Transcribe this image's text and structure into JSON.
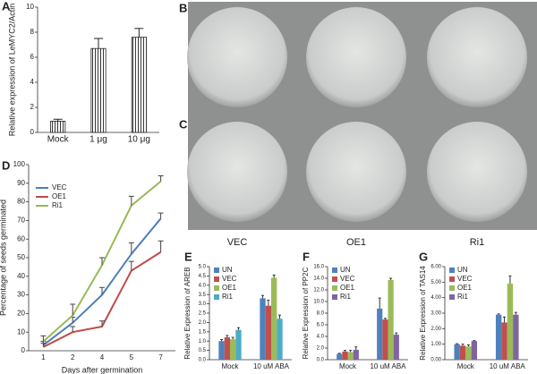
{
  "photo_panels": {
    "labels": [
      "B",
      "C"
    ],
    "column_labels": [
      "VEC",
      "OE1",
      "Ri1"
    ]
  },
  "chart_data": [
    {
      "panel": "A",
      "type": "bar",
      "ylabel": "Relative expression of LeMYC2/Actin",
      "categories": [
        "Mock",
        "1 μg",
        "10 μg"
      ],
      "values": [
        0.9,
        6.7,
        7.6
      ],
      "errors": [
        0.15,
        0.8,
        0.7
      ],
      "color": "#ffffff",
      "ylim": [
        0,
        10
      ],
      "yticks": [
        0,
        2,
        4,
        6,
        8,
        10
      ]
    },
    {
      "panel": "D",
      "type": "line",
      "ylabel": "Percentage of seeds germinated",
      "xlabel": "Days after germination",
      "categories": [
        "1",
        "2",
        "4",
        "5",
        "7"
      ],
      "ylim": [
        0,
        100
      ],
      "yticks": [
        0,
        10,
        20,
        30,
        40,
        50,
        60,
        70,
        80,
        90,
        100
      ],
      "series": [
        {
          "name": "VEC",
          "color": "#4a7ebb",
          "values": [
            3,
            15,
            30,
            52,
            71
          ],
          "errors": [
            2,
            3,
            4,
            6,
            3
          ]
        },
        {
          "name": "OE1",
          "color": "#be4b48",
          "values": [
            2,
            10,
            13,
            43,
            53
          ],
          "errors": [
            2,
            3,
            3,
            5,
            6
          ]
        },
        {
          "name": "Ri1",
          "color": "#98b954",
          "values": [
            5,
            19,
            46,
            78,
            91
          ],
          "errors": [
            3,
            6,
            4,
            5,
            3
          ]
        }
      ]
    },
    {
      "panel": "E",
      "type": "grouped-bar",
      "ylabel": "Relative Expression of AREB",
      "categories": [
        "Mock",
        "10 uM ABA"
      ],
      "ylim": [
        0,
        5
      ],
      "yticks": [
        {
          "value": 0,
          "label": "0.0"
        },
        0.5,
        {
          "value": 1,
          "label": "1.0"
        },
        1.5,
        {
          "value": 2,
          "label": "2.0"
        },
        2.5,
        {
          "value": 3,
          "label": "3.0"
        },
        3.5,
        {
          "value": 4,
          "label": "4.0"
        },
        4.5,
        {
          "value": 5,
          "label": "5.0"
        }
      ],
      "series": [
        {
          "name": "UN",
          "color": "#4f81bd",
          "values": [
            1.0,
            3.3
          ],
          "errors": [
            0.08,
            0.15
          ]
        },
        {
          "name": "VEC",
          "color": "#c0504d",
          "values": [
            1.2,
            2.9
          ],
          "errors": [
            0.1,
            0.3
          ]
        },
        {
          "name": "OE1",
          "color": "#9bbb59",
          "values": [
            1.1,
            4.4
          ],
          "errors": [
            0.1,
            0.15
          ]
        },
        {
          "name": "Ri1",
          "color": "#4bacc6",
          "values": [
            1.6,
            2.2
          ],
          "errors": [
            0.12,
            0.2
          ]
        }
      ]
    },
    {
      "panel": "F",
      "type": "grouped-bar",
      "ylabel": "Relative Expression of PP2C",
      "categories": [
        "Mock",
        "10 uM ABA"
      ],
      "ylim": [
        0,
        16
      ],
      "yticks": [
        {
          "value": 0,
          "label": "0.0"
        },
        {
          "value": 2,
          "label": "2.0"
        },
        {
          "value": 4,
          "label": "4.0"
        },
        {
          "value": 6,
          "label": "6.0"
        },
        {
          "value": 8,
          "label": "8.0"
        },
        {
          "value": 10,
          "label": "10.0"
        },
        {
          "value": 12,
          "label": "12.0"
        },
        {
          "value": 14,
          "label": "14.0"
        },
        {
          "value": 16,
          "label": "16.0"
        }
      ],
      "series": [
        {
          "name": "UN",
          "color": "#4f81bd",
          "values": [
            1.0,
            8.8
          ],
          "errors": [
            0.1,
            1.8
          ]
        },
        {
          "name": "VEC",
          "color": "#c0504d",
          "values": [
            1.4,
            6.9
          ],
          "errors": [
            0.2,
            0.2
          ]
        },
        {
          "name": "OE1",
          "color": "#9bbb59",
          "values": [
            1.3,
            13.7
          ],
          "errors": [
            0.3,
            0.3
          ]
        },
        {
          "name": "Ri1",
          "color": "#8064a2",
          "values": [
            1.7,
            4.3
          ],
          "errors": [
            0.5,
            0.3
          ]
        }
      ]
    },
    {
      "panel": "G",
      "type": "grouped-bar",
      "ylabel": "Relative Expression of TAS14",
      "categories": [
        "Mock",
        "10 uM ABA"
      ],
      "ylim": [
        0,
        6
      ],
      "yticks": [
        {
          "value": 0,
          "label": "0.00"
        },
        {
          "value": 1,
          "label": "1.00"
        },
        {
          "value": 2,
          "label": "2.00"
        },
        {
          "value": 3,
          "label": "3.00"
        },
        {
          "value": 4,
          "label": "4.00"
        },
        {
          "value": 5,
          "label": "5.00"
        },
        {
          "value": 6,
          "label": "6.00"
        }
      ],
      "series": [
        {
          "name": "UN",
          "color": "#4f81bd",
          "values": [
            1.0,
            2.9
          ],
          "errors": [
            0.03,
            0.05
          ]
        },
        {
          "name": "VEC",
          "color": "#c0504d",
          "values": [
            0.9,
            2.4
          ],
          "errors": [
            0.1,
            0.35
          ]
        },
        {
          "name": "OE1",
          "color": "#9bbb59",
          "values": [
            0.85,
            4.9
          ],
          "errors": [
            0.1,
            0.5
          ]
        },
        {
          "name": "Ri1",
          "color": "#8064a2",
          "values": [
            1.2,
            2.9
          ],
          "errors": [
            0.03,
            0.15
          ]
        }
      ]
    }
  ]
}
